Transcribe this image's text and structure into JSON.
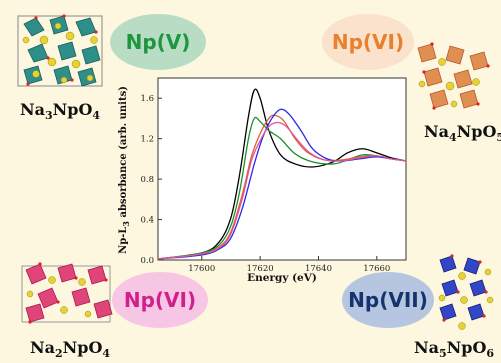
{
  "compounds": {
    "top_left": {
      "prefix": "Na",
      "n1": "3",
      "mid": "NpO",
      "n2": "4"
    },
    "top_right": {
      "prefix": "Na",
      "n1": "4",
      "mid": "NpO",
      "n2": "5"
    },
    "bottom_left": {
      "prefix": "Na",
      "n1": "2",
      "mid": "NpO",
      "n2": "4"
    },
    "bottom_right": {
      "prefix": "Na",
      "n1": "5",
      "mid": "NpO",
      "n2": "6"
    }
  },
  "oxidation_labels": {
    "np_v": "Np(V)",
    "np_vi_top": "Np(VI)",
    "np_vi_bottom": "Np(VI)",
    "np_vii": "Np(VII)"
  },
  "colors": {
    "background": "#fdf7e0",
    "np_v_fill": "#b8ddc4",
    "np_v_text": "#1e9640",
    "np_vi_top_fill": "#fbe2cc",
    "np_vi_top_text": "#e8802e",
    "np_vi_bottom_fill": "#f7c6e4",
    "np_vi_bottom_text": "#d0208c",
    "np_vii_fill": "#b6c6e0",
    "np_vii_text": "#16336e"
  },
  "chart_data": {
    "type": "line",
    "ylabel": "Np-L3 absorbance (arb. units)",
    "xlabel": "Energy (eV)",
    "xlim": [
      17585,
      17670
    ],
    "ylim": [
      0,
      1.8
    ],
    "xticks": [
      "17600",
      "17620",
      "17640",
      "17660"
    ],
    "yticks": [
      "0.0",
      "0.4",
      "0.8",
      "1.2",
      "1.6"
    ],
    "series": [
      {
        "color": "#000000",
        "x": [
          17585,
          17600,
          17606,
          17610,
          17613,
          17616,
          17618,
          17620,
          17623,
          17627,
          17632,
          17638,
          17645,
          17650,
          17655,
          17660,
          17665,
          17670
        ],
        "y": [
          0.01,
          0.07,
          0.18,
          0.42,
          0.85,
          1.42,
          1.68,
          1.6,
          1.28,
          1.04,
          0.95,
          0.92,
          0.97,
          1.06,
          1.1,
          1.06,
          1.01,
          0.98
        ]
      },
      {
        "color": "#1c8f2a",
        "x": [
          17585,
          17600,
          17606,
          17610,
          17613,
          17616,
          17618,
          17620,
          17623,
          17627,
          17632,
          17638,
          17645,
          17650,
          17655,
          17660,
          17665,
          17670
        ],
        "y": [
          0.01,
          0.07,
          0.15,
          0.34,
          0.68,
          1.2,
          1.4,
          1.37,
          1.28,
          1.2,
          1.05,
          0.97,
          0.95,
          0.99,
          1.04,
          1.03,
          1.0,
          0.98
        ]
      },
      {
        "color": "#e0603a",
        "x": [
          17585,
          17600,
          17606,
          17610,
          17614,
          17617,
          17620,
          17623,
          17625,
          17628,
          17632,
          17636,
          17642,
          17648,
          17654,
          17660,
          17665,
          17670
        ],
        "y": [
          0.01,
          0.06,
          0.13,
          0.28,
          0.66,
          1.02,
          1.25,
          1.4,
          1.43,
          1.38,
          1.2,
          1.07,
          0.99,
          0.99,
          1.02,
          1.03,
          1.0,
          0.98
        ]
      },
      {
        "color": "#2a2ae0",
        "x": [
          17585,
          17600,
          17606,
          17610,
          17614,
          17618,
          17621,
          17624,
          17627,
          17630,
          17634,
          17638,
          17643,
          17648,
          17654,
          17660,
          17665,
          17670
        ],
        "y": [
          0.01,
          0.05,
          0.11,
          0.22,
          0.52,
          0.95,
          1.22,
          1.4,
          1.49,
          1.44,
          1.28,
          1.1,
          1.0,
          0.98,
          1.0,
          1.02,
          1.0,
          0.98
        ]
      },
      {
        "color": "#e0559a",
        "x": [
          17585,
          17600,
          17606,
          17610,
          17614,
          17617,
          17620,
          17623,
          17626,
          17629,
          17633,
          17637,
          17642,
          17648,
          17654,
          17660,
          17665,
          17670
        ],
        "y": [
          0.01,
          0.06,
          0.12,
          0.26,
          0.62,
          0.98,
          1.18,
          1.32,
          1.36,
          1.32,
          1.18,
          1.06,
          0.99,
          0.98,
          1.01,
          1.03,
          1.0,
          0.98
        ]
      }
    ]
  }
}
